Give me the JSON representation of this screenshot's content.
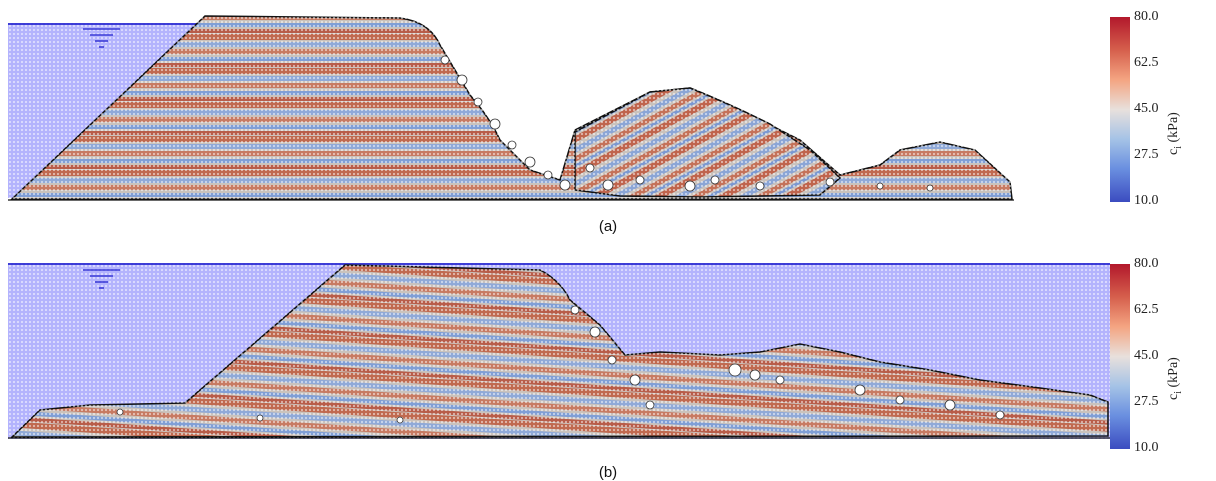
{
  "panels": [
    {
      "caption": "(a)"
    },
    {
      "caption": "(b)"
    }
  ],
  "colorbar": {
    "ticks": [
      "80.0",
      "62.5",
      "45.0",
      "27.5",
      "10.0"
    ],
    "label": "c_i (kPa)",
    "label_main": "c",
    "label_sub": "i",
    "label_unit": "(kPa)"
  },
  "colors": {
    "water": "#b3b3fd",
    "water_line": "#3b3bd6",
    "high": "#b2182b",
    "mid": "#dddddd",
    "low": "#3b4cc0",
    "outline": "#111111"
  },
  "icons": [
    "water-level-icon"
  ]
}
